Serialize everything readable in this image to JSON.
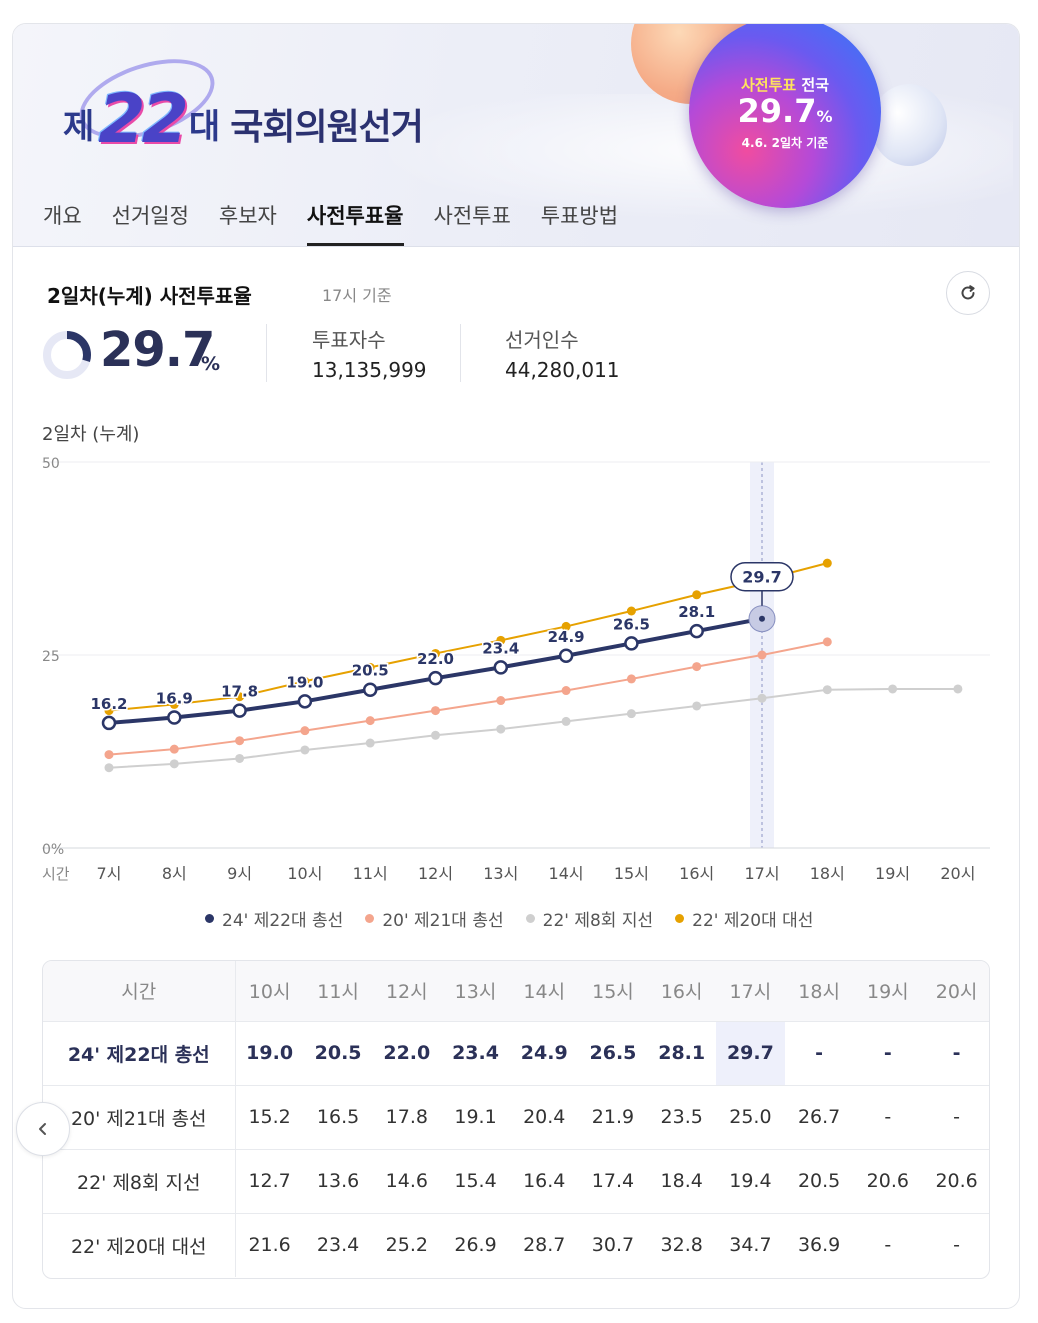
{
  "banner": {
    "logo_prefix": "제",
    "logo_number": "22",
    "logo_suffix": "대",
    "logo_title": "국회의원선거",
    "badge_line1_highlight": "사전투표",
    "badge_line1_rest": " 전국",
    "badge_value": "29.7",
    "badge_unit": "%",
    "badge_line3": "4.6. 2일차 기준"
  },
  "tabs": [
    {
      "label": "개요",
      "active": false
    },
    {
      "label": "선거일정",
      "active": false
    },
    {
      "label": "후보자",
      "active": false
    },
    {
      "label": "사전투표율",
      "active": true
    },
    {
      "label": "사전투표",
      "active": false
    },
    {
      "label": "투표방법",
      "active": false
    }
  ],
  "summary": {
    "title": "2일차(누계) 사전투표율",
    "subtitle": "17시 기준",
    "rate": "29.7",
    "rate_unit": "%",
    "rate_fraction": 0.297,
    "voters_label": "투표자수",
    "voters_value": "13,135,999",
    "electorate_label": "선거인수",
    "electorate_value": "44,280,011"
  },
  "icons": {
    "refresh": "refresh-icon",
    "prev": "chevron-left-icon"
  },
  "chart_data": {
    "type": "line",
    "title": "2일차 (누계)",
    "xlabel": "시간",
    "ylabel": "",
    "ylim": [
      0,
      50
    ],
    "yticks": [
      "0%",
      "25",
      "50"
    ],
    "categories": [
      "7시",
      "8시",
      "9시",
      "10시",
      "11시",
      "12시",
      "13시",
      "14시",
      "15시",
      "16시",
      "17시",
      "18시",
      "19시",
      "20시"
    ],
    "highlight_category": "17시",
    "grid": true,
    "legend": "bottom",
    "series": [
      {
        "name": "24' 제22대 총선",
        "color": "#2b3667",
        "values": [
          16.2,
          16.9,
          17.8,
          19.0,
          20.5,
          22.0,
          23.4,
          24.9,
          26.5,
          28.1,
          29.7,
          null,
          null,
          null
        ],
        "labeled": true
      },
      {
        "name": "20' 제21대 총선",
        "color": "#f4a58d",
        "values": [
          12.1,
          12.8,
          13.9,
          15.2,
          16.5,
          17.8,
          19.1,
          20.4,
          21.9,
          23.5,
          25.0,
          26.7,
          null,
          null
        ],
        "labeled": false
      },
      {
        "name": "22' 제8회 지선",
        "color": "#cfcfcf",
        "values": [
          10.4,
          10.9,
          11.6,
          12.7,
          13.6,
          14.6,
          15.4,
          16.4,
          17.4,
          18.4,
          19.4,
          20.5,
          20.6,
          20.6
        ],
        "labeled": false
      },
      {
        "name": "22' 제20대 대선",
        "color": "#e6a100",
        "values": [
          17.8,
          18.6,
          19.6,
          21.6,
          23.4,
          25.2,
          26.9,
          28.7,
          30.7,
          32.8,
          34.7,
          36.9,
          null,
          null
        ],
        "labeled": false
      }
    ]
  },
  "table": {
    "header_first": "시간",
    "columns": [
      "10시",
      "11시",
      "12시",
      "13시",
      "14시",
      "15시",
      "16시",
      "17시",
      "18시",
      "19시",
      "20시"
    ],
    "rows": [
      {
        "label": "24' 제22대 총선",
        "cells": [
          "19.0",
          "20.5",
          "22.0",
          "23.4",
          "24.9",
          "26.5",
          "28.1",
          "29.7",
          "-",
          "-",
          "-"
        ]
      },
      {
        "label": "20' 제21대 총선",
        "cells": [
          "15.2",
          "16.5",
          "17.8",
          "19.1",
          "20.4",
          "21.9",
          "23.5",
          "25.0",
          "26.7",
          "-",
          "-"
        ]
      },
      {
        "label": "22' 제8회 지선",
        "cells": [
          "12.7",
          "13.6",
          "14.6",
          "15.4",
          "16.4",
          "17.4",
          "18.4",
          "19.4",
          "20.5",
          "20.6",
          "20.6"
        ]
      },
      {
        "label": "22' 제20대 대선",
        "cells": [
          "21.6",
          "23.4",
          "25.2",
          "26.9",
          "28.7",
          "30.7",
          "32.8",
          "34.7",
          "36.9",
          "-",
          "-"
        ]
      }
    ]
  }
}
